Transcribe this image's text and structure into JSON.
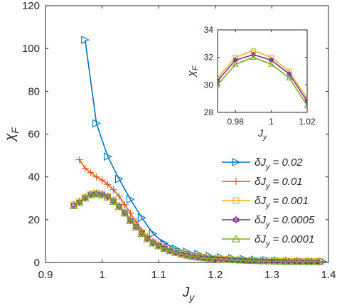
{
  "chart_data": {
    "type": "line",
    "main": {
      "xlabel": "J_y",
      "ylabel": "χ_F",
      "xlim": [
        0.9,
        1.4
      ],
      "ylim": [
        0,
        120
      ],
      "xticks": [
        "0.9",
        "1",
        "1.1",
        "1.2",
        "1.3",
        "1.4"
      ],
      "yticks": [
        "0",
        "20",
        "40",
        "60",
        "80",
        "100",
        "120"
      ],
      "legend_position": "lower-right",
      "grid": false
    },
    "inset": {
      "xlabel": "J_y",
      "ylabel": "χ_F",
      "xlim": [
        0.97,
        1.02
      ],
      "ylim": [
        28,
        34
      ],
      "xticks": [
        "0.98",
        "1",
        "1.02"
      ],
      "yticks": [
        "28",
        "30",
        "32",
        "34"
      ],
      "legend_position": "none",
      "grid": false
    },
    "series": [
      {
        "name": "δJ_y = 0.02",
        "legend_prefix": "δJ",
        "legend_sub": "y",
        "legend_suffix": " = 0.02",
        "color": "#0072BD",
        "marker": "triangle-right",
        "x": [
          0.97,
          0.99,
          1.01,
          1.03,
          1.05,
          1.07,
          1.09,
          1.11,
          1.13,
          1.15,
          1.17,
          1.19,
          1.21,
          1.23,
          1.25,
          1.27,
          1.29,
          1.31,
          1.33,
          1.35,
          1.37,
          1.39
        ],
        "y": [
          104,
          65,
          49.5,
          39,
          29.5,
          21,
          13.5,
          9,
          6.5,
          5,
          4,
          3,
          2.4,
          2,
          1.6,
          1.3,
          1.1,
          0.9,
          0.7,
          0.6,
          0.5,
          0.4
        ]
      },
      {
        "name": "δJ_y = 0.01",
        "legend_prefix": "δJ",
        "legend_sub": "y",
        "legend_suffix": " = 0.01",
        "color": "#D95319",
        "marker": "plus",
        "x": [
          0.96,
          0.97,
          0.98,
          0.99,
          1.0,
          1.01,
          1.02,
          1.03,
          1.04,
          1.05,
          1.06,
          1.07,
          1.08,
          1.09,
          1.1,
          1.11,
          1.12,
          1.13,
          1.14,
          1.15,
          1.16,
          1.17,
          1.18,
          1.19,
          1.2,
          1.21,
          1.22,
          1.23,
          1.24,
          1.25,
          1.26,
          1.27,
          1.28,
          1.29,
          1.3,
          1.31,
          1.32,
          1.33,
          1.34,
          1.35,
          1.36,
          1.37,
          1.38,
          1.39
        ],
        "y": [
          48,
          44,
          42,
          40,
          38.5,
          36.5,
          34,
          31,
          27,
          23,
          19,
          15,
          12,
          10,
          8.5,
          7,
          6,
          5,
          4.3,
          3.7,
          3.2,
          2.8,
          2.4,
          2.1,
          1.9,
          1.7,
          1.5,
          1.4,
          1.2,
          1.1,
          1.0,
          0.9,
          0.85,
          0.8,
          0.7,
          0.65,
          0.6,
          0.55,
          0.5,
          0.45,
          0.45,
          0.4,
          0.4,
          0.35
        ]
      },
      {
        "name": "δJ_y = 0.001",
        "legend_prefix": "δJ",
        "legend_sub": "y",
        "legend_suffix": " = 0.001",
        "color": "#EDB120",
        "marker": "square",
        "x": [
          0.95,
          0.96,
          0.97,
          0.98,
          0.99,
          1.0,
          1.01,
          1.02,
          1.03,
          1.04,
          1.05,
          1.06,
          1.07,
          1.08,
          1.09,
          1.1,
          1.11,
          1.12,
          1.13,
          1.14,
          1.15,
          1.16,
          1.17,
          1.18,
          1.19,
          1.2,
          1.21,
          1.22,
          1.23,
          1.24,
          1.25,
          1.26,
          1.27,
          1.28,
          1.29,
          1.3,
          1.31,
          1.32,
          1.33,
          1.34,
          1.35,
          1.36,
          1.37,
          1.38
        ],
        "y": [
          27,
          28.5,
          30.5,
          32,
          32.5,
          32,
          31,
          29,
          26.5,
          23.5,
          20,
          17,
          14,
          11.5,
          9.5,
          8,
          6.8,
          5.7,
          4.8,
          4.1,
          3.5,
          3.0,
          2.6,
          2.3,
          2.0,
          1.8,
          1.6,
          1.4,
          1.3,
          1.2,
          1.1,
          1.0,
          0.9,
          0.85,
          0.8,
          0.7,
          0.65,
          0.6,
          0.55,
          0.5,
          0.5,
          0.45,
          0.45,
          0.4
        ]
      },
      {
        "name": "δJ_y = 0.0005",
        "legend_prefix": "δJ",
        "legend_sub": "y",
        "legend_suffix": " = 0.0005",
        "color": "#7E2F8E",
        "marker": "hexagram",
        "x": [
          0.95,
          0.96,
          0.97,
          0.98,
          0.99,
          1.0,
          1.01,
          1.02,
          1.03,
          1.04,
          1.05,
          1.06,
          1.07,
          1.08,
          1.09,
          1.1,
          1.11,
          1.12,
          1.13,
          1.14,
          1.15,
          1.16,
          1.17,
          1.18,
          1.19,
          1.2,
          1.21,
          1.22,
          1.23,
          1.24,
          1.25,
          1.26,
          1.27,
          1.28,
          1.29,
          1.3,
          1.31,
          1.32,
          1.33,
          1.34,
          1.35,
          1.36,
          1.37,
          1.38
        ],
        "y": [
          26.8,
          28.3,
          30.3,
          31.8,
          32.2,
          31.8,
          30.8,
          28.8,
          26.3,
          23.3,
          19.8,
          16.8,
          13.8,
          11.3,
          9.3,
          7.9,
          6.7,
          5.6,
          4.7,
          4.0,
          3.4,
          2.9,
          2.5,
          2.2,
          1.9,
          1.7,
          1.5,
          1.35,
          1.25,
          1.15,
          1.05,
          0.95,
          0.85,
          0.8,
          0.75,
          0.7,
          0.6,
          0.55,
          0.5,
          0.45,
          0.45,
          0.4,
          0.4,
          0.35
        ]
      },
      {
        "name": "δJ_y = 0.0001",
        "legend_prefix": "δJ",
        "legend_sub": "y",
        "legend_suffix": " = 0.0001",
        "color": "#77AC30",
        "marker": "triangle-up",
        "x": [
          0.95,
          0.96,
          0.97,
          0.98,
          0.99,
          1.0,
          1.01,
          1.02,
          1.03,
          1.04,
          1.05,
          1.06,
          1.07,
          1.08,
          1.09,
          1.1,
          1.11,
          1.12,
          1.13,
          1.14,
          1.15,
          1.16,
          1.17,
          1.18,
          1.19,
          1.2,
          1.21,
          1.22,
          1.23,
          1.24,
          1.25,
          1.26,
          1.27,
          1.28,
          1.29,
          1.3,
          1.31,
          1.32,
          1.33,
          1.34,
          1.35,
          1.36,
          1.37,
          1.38
        ],
        "y": [
          26.5,
          28,
          30,
          31.5,
          32,
          31.5,
          30.5,
          28.5,
          26,
          23,
          19.5,
          16.5,
          13.5,
          11,
          9,
          7.7,
          6.5,
          5.5,
          4.6,
          3.9,
          3.3,
          2.8,
          2.4,
          2.1,
          1.85,
          1.65,
          1.45,
          1.3,
          1.2,
          1.1,
          1.0,
          0.9,
          0.8,
          0.75,
          0.7,
          0.65,
          0.6,
          0.5,
          0.45,
          0.45,
          0.4,
          0.4,
          0.35,
          0.35
        ]
      }
    ]
  }
}
